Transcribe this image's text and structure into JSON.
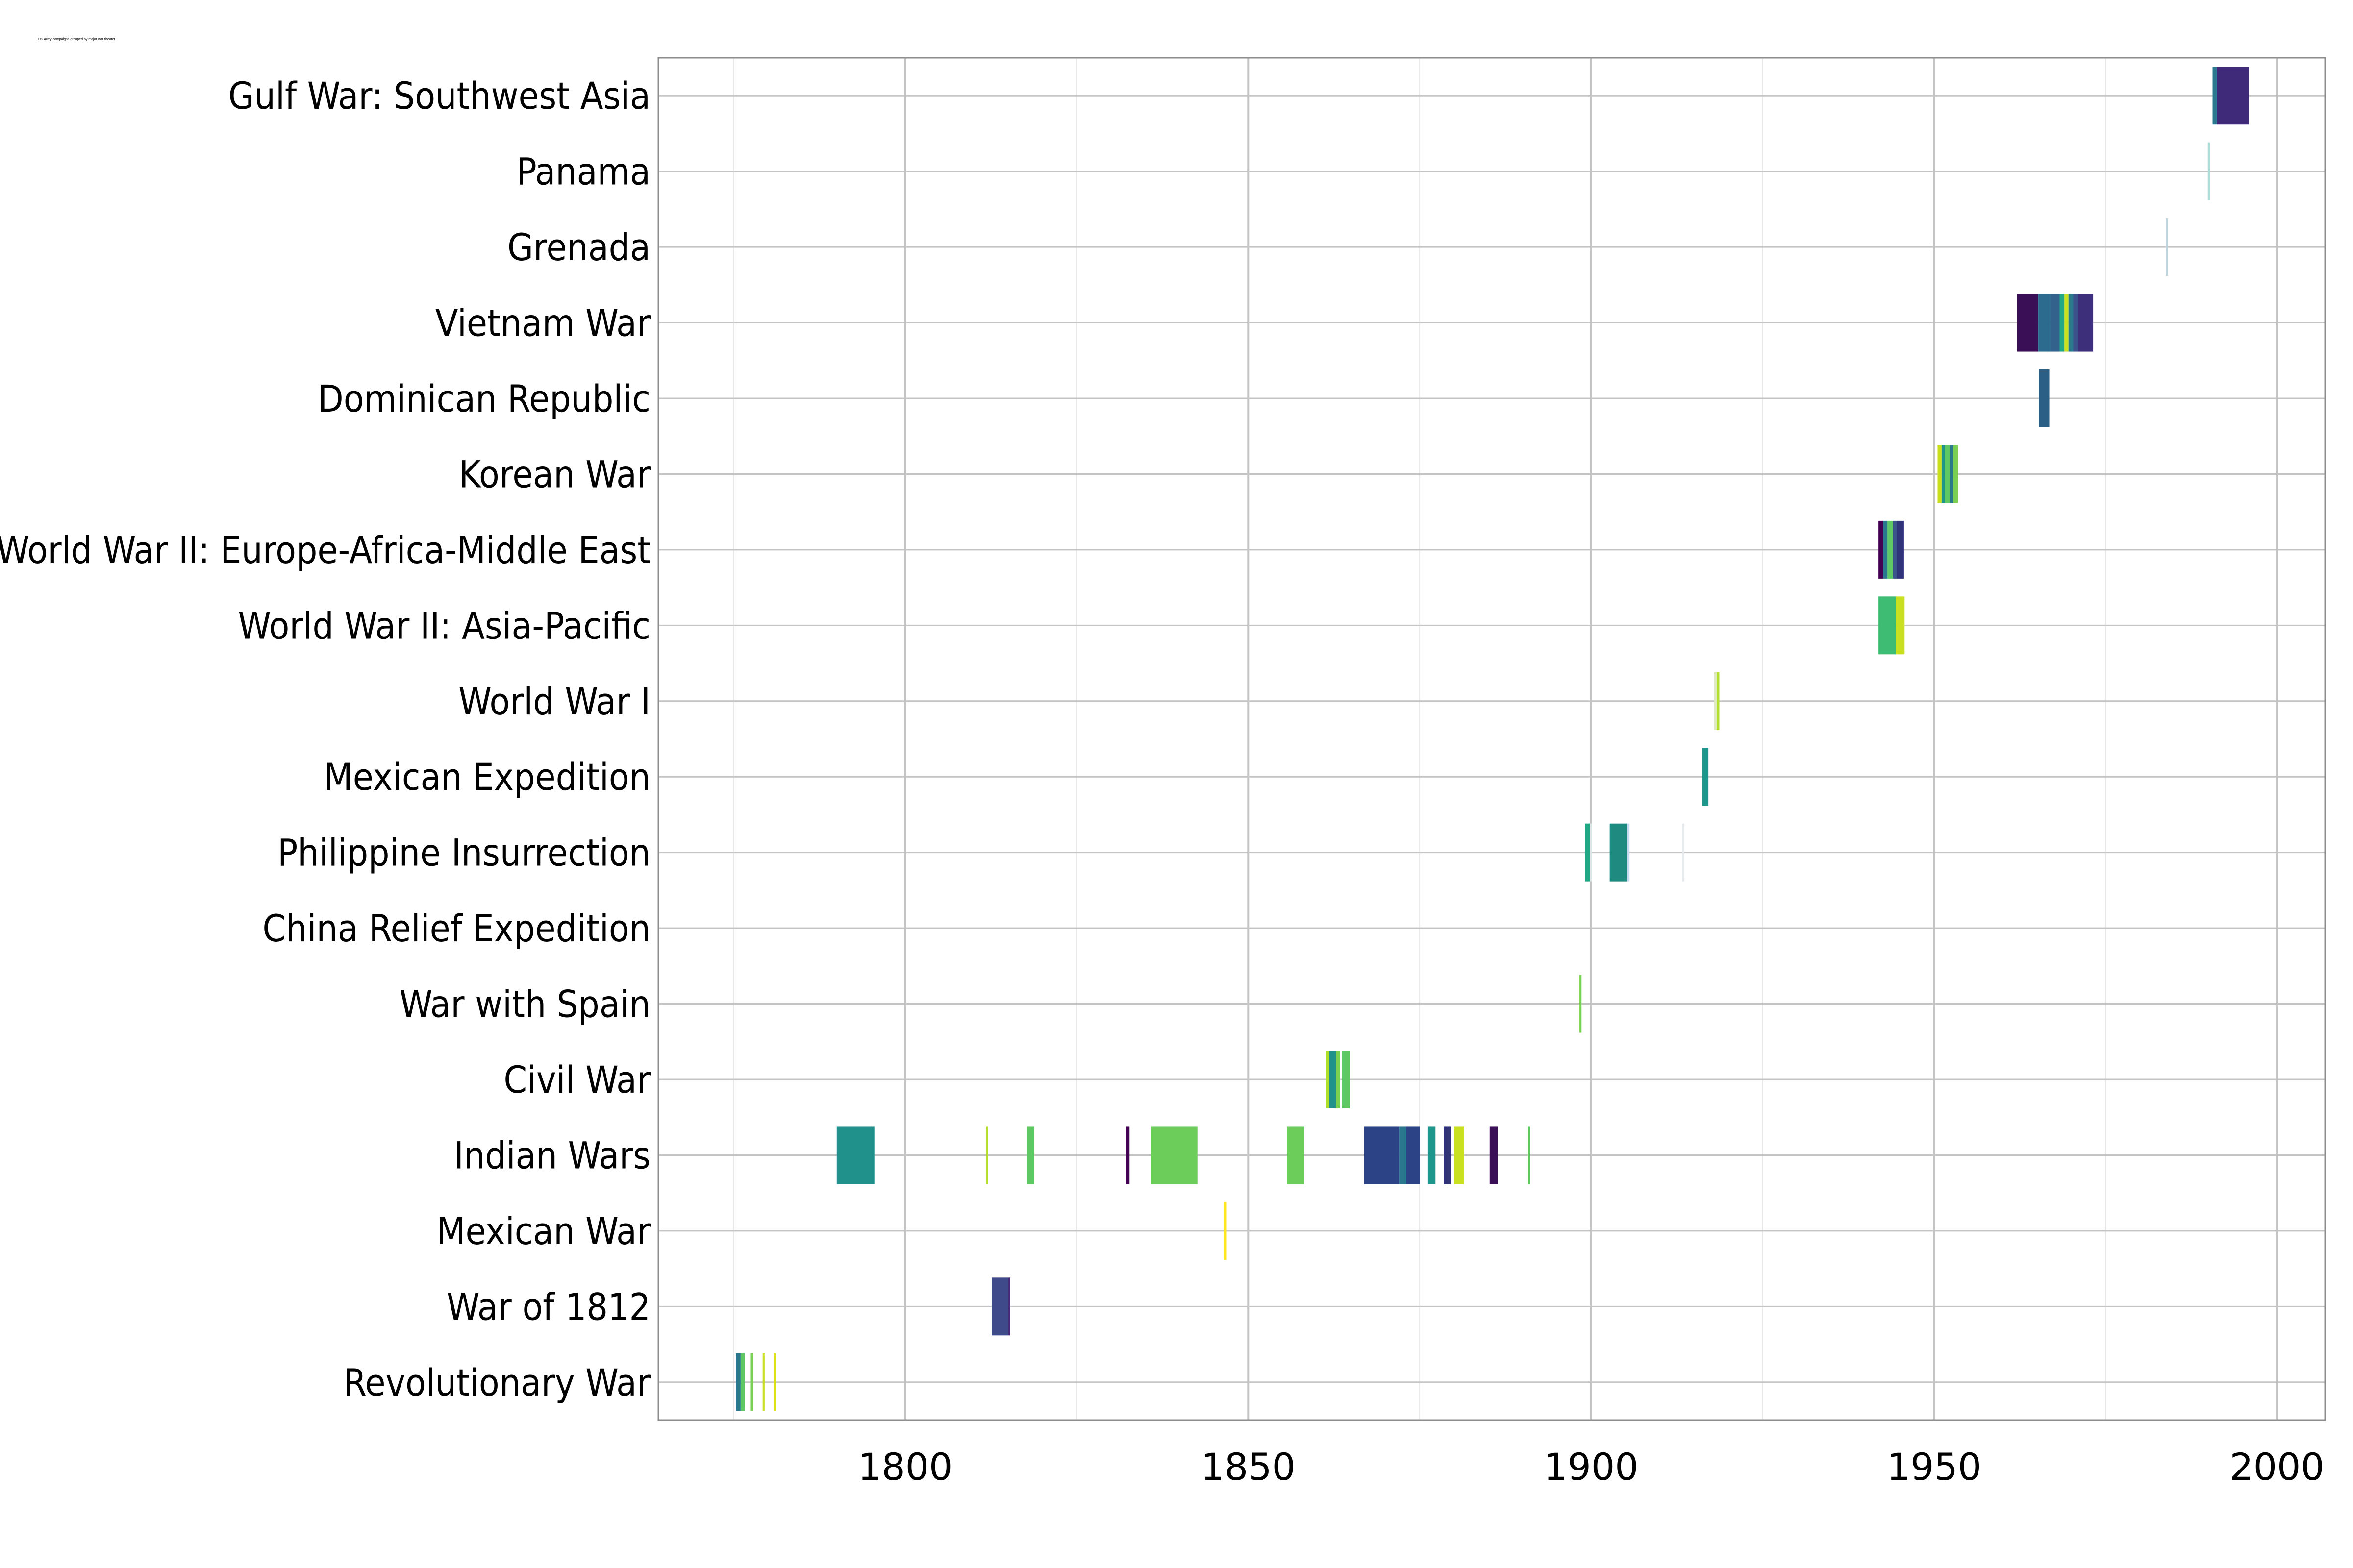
{
  "chart_data": {
    "type": "timeline",
    "title": "US Army campaigns grouped by major war theater",
    "xlabel": "",
    "ylabel": "",
    "xlim": [
      1764,
      2007
    ],
    "xticks": [
      1800,
      1850,
      1900,
      1950,
      2000
    ],
    "grid": true,
    "legend": "none",
    "palette": "viridis",
    "caption": "",
    "categories": [
      "Revolutionary War",
      "War of 1812",
      "Mexican War",
      "Indian Wars",
      "Civil War",
      "War with Spain",
      "China Relief Expedition",
      "Philippine Insurrection",
      "Mexican Expedition",
      "World War I",
      "World War II: Asia-Pacific",
      "World War II: Europe-Africa-Middle East",
      "Korean War",
      "Dominican Republic",
      "Vietnam War",
      "Grenada",
      "Panama",
      "Gulf War: Southwest Asia"
    ],
    "spans": [
      {
        "war": "Revolutionary War",
        "start": 1775.3,
        "end": 1776.0,
        "color": "#2a788e"
      },
      {
        "war": "Revolutionary War",
        "start": 1776.0,
        "end": 1776.6,
        "color": "#5ec962"
      },
      {
        "war": "Revolutionary War",
        "start": 1777.4,
        "end": 1777.8,
        "color": "#7ad151"
      },
      {
        "war": "Revolutionary War",
        "start": 1779.2,
        "end": 1779.5,
        "color": "#c8e020"
      },
      {
        "war": "Revolutionary War",
        "start": 1780.8,
        "end": 1781.1,
        "color": "#dde318"
      },
      {
        "war": "War of 1812",
        "start": 1812.6,
        "end": 1815.0,
        "color": "#3e4a89"
      },
      {
        "war": "War of 1812",
        "start": 1815.0,
        "end": 1815.3,
        "color": "#482878"
      },
      {
        "war": "Mexican War",
        "start": 1846.4,
        "end": 1846.8,
        "color": "#fde725"
      },
      {
        "war": "Indian Wars",
        "start": 1790.0,
        "end": 1795.5,
        "color": "#21918c"
      },
      {
        "war": "Indian Wars",
        "start": 1811.8,
        "end": 1812.1,
        "color": "#b5de2b"
      },
      {
        "war": "Indian Wars",
        "start": 1817.8,
        "end": 1818.8,
        "color": "#5ec962"
      },
      {
        "war": "Indian Wars",
        "start": 1832.2,
        "end": 1832.7,
        "color": "#440154"
      },
      {
        "war": "Indian Wars",
        "start": 1835.9,
        "end": 1842.6,
        "color": "#6ccd5a"
      },
      {
        "war": "Indian Wars",
        "start": 1855.7,
        "end": 1858.2,
        "color": "#6ccd5a"
      },
      {
        "war": "Indian Wars",
        "start": 1866.9,
        "end": 1872.0,
        "color": "#2c4485"
      },
      {
        "war": "Indian Wars",
        "start": 1872.0,
        "end": 1873.0,
        "color": "#2a788e"
      },
      {
        "war": "Indian Wars",
        "start": 1873.0,
        "end": 1875.0,
        "color": "#2c4485"
      },
      {
        "war": "Indian Wars",
        "start": 1876.2,
        "end": 1877.3,
        "color": "#1f968b"
      },
      {
        "war": "Indian Wars",
        "start": 1878.5,
        "end": 1879.5,
        "color": "#31337a"
      },
      {
        "war": "Indian Wars",
        "start": 1880.0,
        "end": 1881.5,
        "color": "#c8e020"
      },
      {
        "war": "Indian Wars",
        "start": 1885.2,
        "end": 1886.4,
        "color": "#3b0f56"
      },
      {
        "war": "Indian Wars",
        "start": 1890.8,
        "end": 1891.1,
        "color": "#5ec962"
      },
      {
        "war": "Civil War",
        "start": 1861.3,
        "end": 1861.8,
        "color": "#b5de2b"
      },
      {
        "war": "Civil War",
        "start": 1861.8,
        "end": 1862.8,
        "color": "#21918c"
      },
      {
        "war": "Civil War",
        "start": 1862.8,
        "end": 1863.4,
        "color": "#7ad151"
      },
      {
        "war": "Civil War",
        "start": 1863.7,
        "end": 1864.8,
        "color": "#5ec962"
      },
      {
        "war": "War with Spain",
        "start": 1898.3,
        "end": 1898.6,
        "color": "#7ad151"
      },
      {
        "war": "Philippine Insurrection",
        "start": 1899.1,
        "end": 1899.8,
        "color": "#22a884"
      },
      {
        "war": "Philippine Insurrection",
        "start": 1899.8,
        "end": 1900.1,
        "color": "#dde6e6"
      },
      {
        "war": "Philippine Insurrection",
        "start": 1902.7,
        "end": 1905.2,
        "color": "#1f8a80"
      },
      {
        "war": "Philippine Insurrection",
        "start": 1905.2,
        "end": 1905.6,
        "color": "#c6dbef"
      },
      {
        "war": "Philippine Insurrection",
        "start": 1913.3,
        "end": 1913.6,
        "color": "#e8ebee"
      },
      {
        "war": "Mexican Expedition",
        "start": 1916.2,
        "end": 1917.1,
        "color": "#1f968b"
      },
      {
        "war": "World War I",
        "start": 1917.9,
        "end": 1918.3,
        "color": "#dfe9c0"
      },
      {
        "war": "World War I",
        "start": 1918.3,
        "end": 1918.7,
        "color": "#b5de2b"
      },
      {
        "war": "World War II: Asia-Pacific",
        "start": 1941.9,
        "end": 1944.4,
        "color": "#3fbc73"
      },
      {
        "war": "World War II: Asia-Pacific",
        "start": 1944.4,
        "end": 1945.7,
        "color": "#c8e020"
      },
      {
        "war": "World War II: Europe-Africa-Middle East",
        "start": 1941.9,
        "end": 1942.6,
        "color": "#440154"
      },
      {
        "war": "World War II: Europe-Africa-Middle East",
        "start": 1942.6,
        "end": 1943.2,
        "color": "#2a788e"
      },
      {
        "war": "World War II: Europe-Africa-Middle East",
        "start": 1943.2,
        "end": 1944.0,
        "color": "#5ec962"
      },
      {
        "war": "World War II: Europe-Africa-Middle East",
        "start": 1944.0,
        "end": 1944.6,
        "color": "#3b528b"
      },
      {
        "war": "World War II: Europe-Africa-Middle East",
        "start": 1944.6,
        "end": 1945.6,
        "color": "#31337a"
      },
      {
        "war": "Korean War",
        "start": 1950.5,
        "end": 1951.1,
        "color": "#c8e020"
      },
      {
        "war": "Korean War",
        "start": 1951.1,
        "end": 1951.6,
        "color": "#21918c"
      },
      {
        "war": "Korean War",
        "start": 1951.6,
        "end": 1952.3,
        "color": "#5ec962"
      },
      {
        "war": "Korean War",
        "start": 1952.3,
        "end": 1952.8,
        "color": "#2a788e"
      },
      {
        "war": "Korean War",
        "start": 1952.8,
        "end": 1953.5,
        "color": "#7ad151"
      },
      {
        "war": "Dominican Republic",
        "start": 1965.3,
        "end": 1966.8,
        "color": "#2c5f85"
      },
      {
        "war": "Vietnam War",
        "start": 1962.1,
        "end": 1965.2,
        "color": "#3b0f56"
      },
      {
        "war": "Vietnam War",
        "start": 1965.2,
        "end": 1967.0,
        "color": "#2c6b8e"
      },
      {
        "war": "Vietnam War",
        "start": 1967.0,
        "end": 1968.3,
        "color": "#33638d"
      },
      {
        "war": "Vietnam War",
        "start": 1968.3,
        "end": 1969.0,
        "color": "#22a884"
      },
      {
        "war": "Vietnam War",
        "start": 1969.0,
        "end": 1969.6,
        "color": "#c8e020"
      },
      {
        "war": "Vietnam War",
        "start": 1969.6,
        "end": 1970.3,
        "color": "#2a788e"
      },
      {
        "war": "Vietnam War",
        "start": 1970.3,
        "end": 1971.0,
        "color": "#3b528b"
      },
      {
        "war": "Vietnam War",
        "start": 1971.0,
        "end": 1973.2,
        "color": "#3e2f7a"
      },
      {
        "war": "Grenada",
        "start": 1983.8,
        "end": 1984.1,
        "color": "#bfd5de"
      },
      {
        "war": "Panama",
        "start": 1989.9,
        "end": 1990.2,
        "color": "#a8dcd6"
      },
      {
        "war": "Gulf War: Southwest Asia",
        "start": 1990.6,
        "end": 1991.2,
        "color": "#2a788e"
      },
      {
        "war": "Gulf War: Southwest Asia",
        "start": 1991.2,
        "end": 1995.9,
        "color": "#3e2a78"
      }
    ]
  }
}
